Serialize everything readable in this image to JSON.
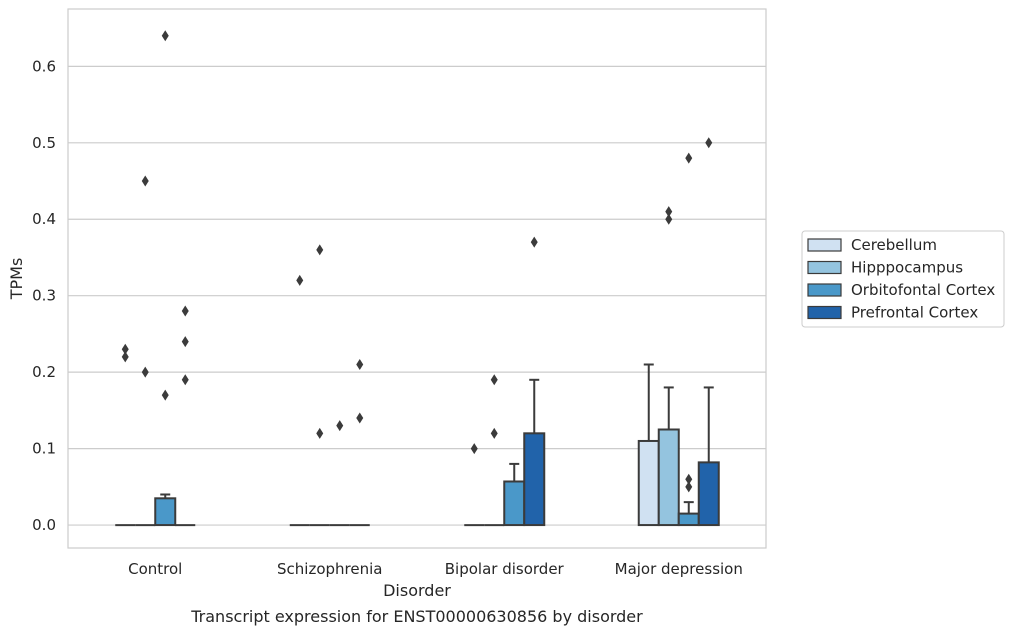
{
  "chart_data": {
    "type": "bar",
    "caption": "Transcript expression for ENST00000630856 by disorder",
    "xlabel": "Disorder",
    "ylabel": "TPMs",
    "ylim": [
      -0.03,
      0.675
    ],
    "yticks": [
      "0.0",
      "0.1",
      "0.2",
      "0.3",
      "0.4",
      "0.5",
      "0.6"
    ],
    "grid": "horizontal",
    "legend_position": "right",
    "categories": [
      "Control",
      "Schizophrenia",
      "Bipolar disorder",
      "Major depression"
    ],
    "series": [
      {
        "name": "Cerebellum",
        "color": "#d0e1f2",
        "values": [
          0.0,
          0.0,
          0.0,
          0.11
        ],
        "error_upper": [
          null,
          null,
          null,
          0.21
        ],
        "outliers": [
          [
            0.22,
            0.23
          ],
          [
            0.32
          ],
          [
            0.1
          ],
          []
        ]
      },
      {
        "name": "Hipppocampus",
        "color": "#94c4df",
        "values": [
          0.0,
          0.0,
          0.0,
          0.125
        ],
        "error_upper": [
          null,
          null,
          null,
          0.18
        ],
        "outliers": [
          [
            0.45,
            0.2
          ],
          [
            0.36,
            0.12
          ],
          [
            0.19,
            0.12
          ],
          [
            0.4,
            0.41
          ]
        ]
      },
      {
        "name": "Orbitofontal Cortex",
        "color": "#4a98c9",
        "values": [
          0.035,
          0.0,
          0.057,
          0.015
        ],
        "error_upper": [
          0.04,
          null,
          0.08,
          0.03
        ],
        "outliers": [
          [
            0.64,
            0.17
          ],
          [
            0.13
          ],
          [],
          [
            0.48,
            0.06,
            0.05
          ]
        ]
      },
      {
        "name": "Prefrontal Cortex",
        "color": "#2163aa",
        "values": [
          0.0,
          0.0,
          0.12,
          0.082
        ],
        "error_upper": [
          null,
          null,
          0.19,
          0.18
        ],
        "outliers": [
          [
            0.28,
            0.24,
            0.19
          ],
          [
            0.21,
            0.14
          ],
          [
            0.37
          ],
          [
            0.5
          ]
        ]
      }
    ]
  }
}
